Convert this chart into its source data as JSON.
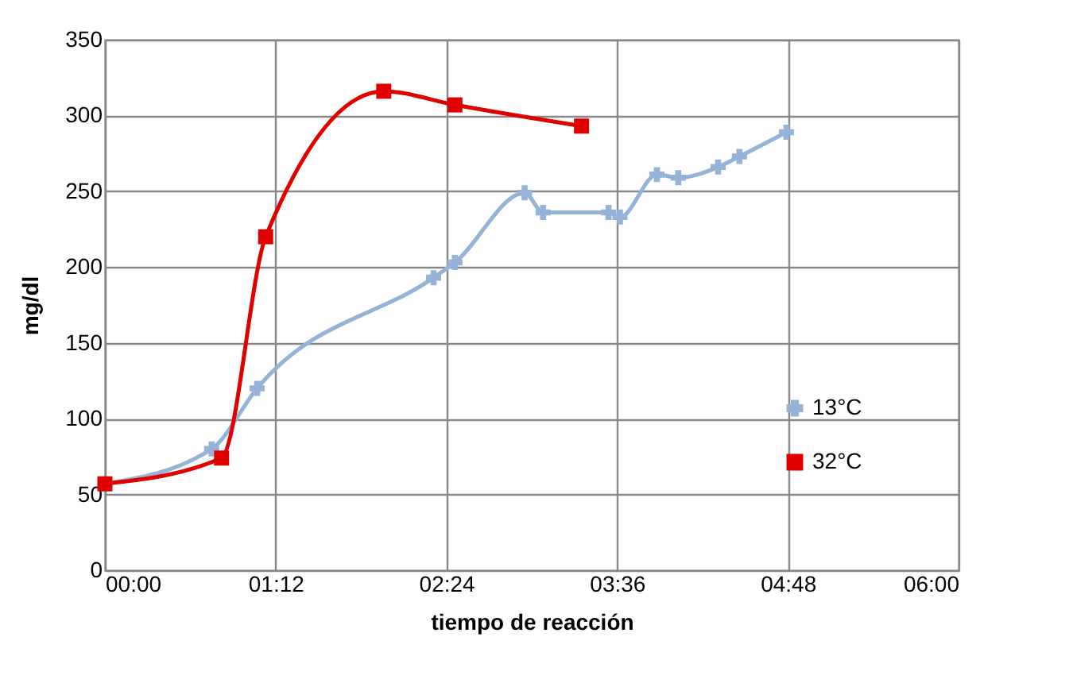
{
  "chart_data": {
    "type": "line",
    "xlabel": "tiempo de reacción",
    "ylabel": "mg/dl",
    "xlim": [
      0,
      6
    ],
    "xticks": [
      {
        "value": 0,
        "label": "00:00"
      },
      {
        "value": 1.2,
        "label": "01:12"
      },
      {
        "value": 2.4,
        "label": "02:24"
      },
      {
        "value": 3.6,
        "label": "03:36"
      },
      {
        "value": 4.8,
        "label": "04:48"
      },
      {
        "value": 6,
        "label": "06:00"
      }
    ],
    "ylim": [
      0,
      350
    ],
    "yticks": [
      0,
      50,
      100,
      150,
      200,
      250,
      300,
      350
    ],
    "grid": true,
    "legend": "right",
    "line_style": "solid",
    "series": [
      {
        "name": "13°C",
        "color": "#95b3d7",
        "marker": "cross",
        "x": [
          0,
          0.75,
          1.07,
          2.31,
          2.46,
          2.95,
          3.08,
          3.54,
          3.62,
          3.88,
          4.03,
          4.31,
          4.46,
          4.79
        ],
        "values": [
          57,
          80,
          120,
          193,
          203,
          249,
          236,
          236,
          233,
          261,
          259,
          266,
          273,
          289
        ]
      },
      {
        "name": "32°C",
        "color": "#e00000",
        "marker": "square",
        "x": [
          0,
          0.82,
          1.13,
          1.96,
          2.46,
          3.35
        ],
        "values": [
          57,
          74,
          220,
          316,
          307,
          293
        ]
      }
    ]
  }
}
